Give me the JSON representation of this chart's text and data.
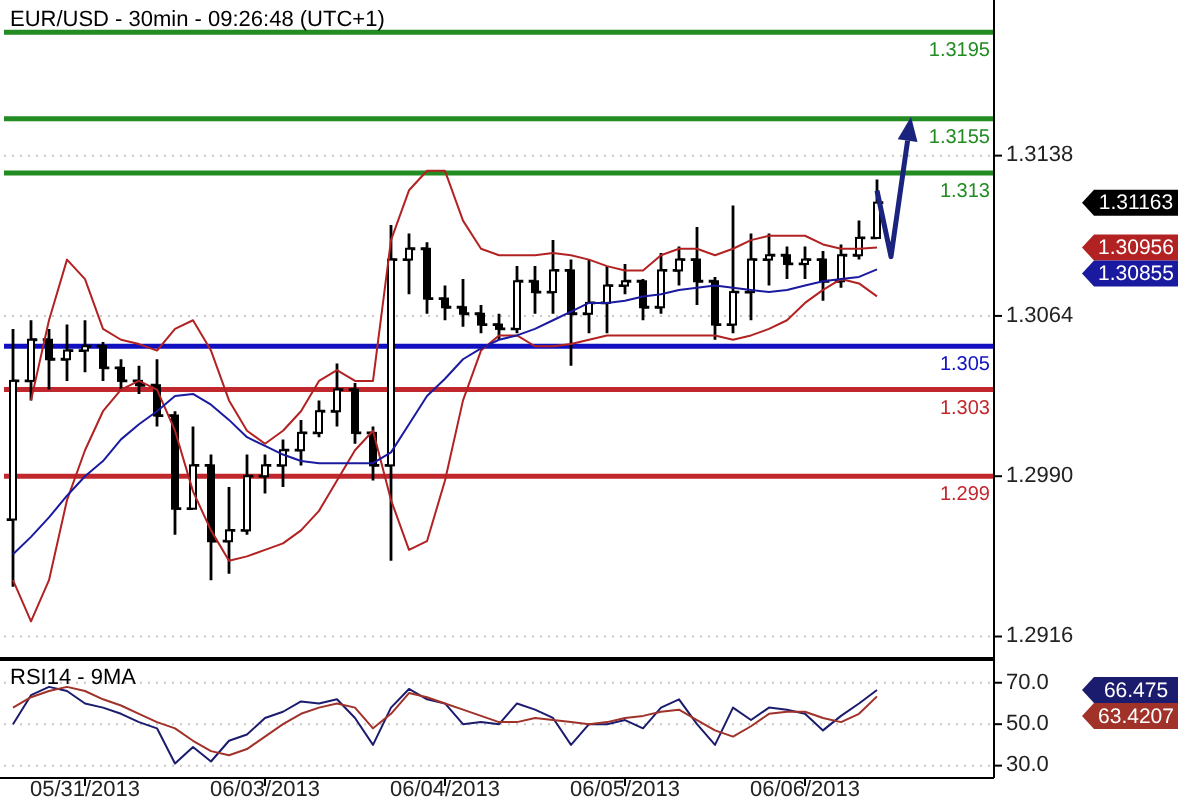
{
  "chart_data": [
    {
      "type": "candlestick",
      "title": "EUR/USD - 30min - 09:26:48 (UTC+1)",
      "color": "#000000",
      "grid": "y",
      "categories": [
        null,
        null,
        null,
        null,
        null,
        null,
        null,
        null,
        null,
        null,
        null,
        null,
        null,
        null,
        null,
        null,
        null,
        null,
        null,
        null,
        null,
        null,
        null,
        null,
        null,
        null,
        null,
        null,
        null,
        null,
        null,
        null,
        null,
        null,
        null,
        null,
        null,
        null,
        null,
        null,
        null,
        null,
        null,
        null,
        null,
        null,
        null,
        null,
        null,
        null,
        null,
        null,
        null,
        null,
        null
      ],
      "ohlc": [
        [
          1.297,
          1.3058,
          1.2939,
          1.3034
        ],
        [
          1.3034,
          1.3062,
          1.3025,
          1.3053
        ],
        [
          1.3053,
          1.3058,
          1.303,
          1.3044
        ],
        [
          1.3044,
          1.306,
          1.3034,
          1.3048
        ],
        [
          1.3048,
          1.3062,
          1.3038,
          1.305
        ],
        [
          1.305,
          1.3052,
          1.3034,
          1.304
        ],
        [
          1.304,
          1.3044,
          1.303,
          1.3034
        ],
        [
          1.3034,
          1.3041,
          1.3028,
          1.3032
        ],
        [
          1.3032,
          1.3044,
          1.3013,
          1.3018
        ],
        [
          1.3018,
          1.302,
          1.2963,
          1.2975
        ],
        [
          1.2975,
          1.3013,
          1.2975,
          1.2995
        ],
        [
          1.2995,
          1.3,
          1.2942,
          1.296
        ],
        [
          1.296,
          1.2985,
          1.2945,
          1.2965
        ],
        [
          1.2965,
          1.3,
          1.2963,
          1.299
        ],
        [
          1.299,
          1.3,
          1.2982,
          1.2995
        ],
        [
          1.2995,
          1.3007,
          1.2985,
          1.3002
        ],
        [
          1.3002,
          1.3016,
          1.2995,
          1.301
        ],
        [
          1.301,
          1.3025,
          1.3008,
          1.302
        ],
        [
          1.302,
          1.3042,
          1.3013,
          1.303
        ],
        [
          1.303,
          1.3033,
          1.3005,
          1.301
        ],
        [
          1.301,
          1.3013,
          1.2988,
          1.2995
        ],
        [
          1.2995,
          1.3106,
          1.2951,
          1.309
        ],
        [
          1.309,
          1.3102,
          1.3074,
          1.3095
        ],
        [
          1.3095,
          1.3098,
          1.3065,
          1.3072
        ],
        [
          1.3072,
          1.3078,
          1.3062,
          1.3068
        ],
        [
          1.3068,
          1.3081,
          1.3059,
          1.3065
        ],
        [
          1.3065,
          1.3069,
          1.3056,
          1.306
        ],
        [
          1.306,
          1.3065,
          1.3053,
          1.3058
        ],
        [
          1.3058,
          1.3087,
          1.3056,
          1.308
        ],
        [
          1.308,
          1.3087,
          1.3065,
          1.3075
        ],
        [
          1.3075,
          1.3099,
          1.3065,
          1.3085
        ],
        [
          1.3085,
          1.309,
          1.3041,
          1.3065
        ],
        [
          1.3065,
          1.309,
          1.3056,
          1.307
        ],
        [
          1.307,
          1.3087,
          1.3056,
          1.3078
        ],
        [
          1.3078,
          1.3088,
          1.3074,
          1.308
        ],
        [
          1.308,
          1.3081,
          1.3062,
          1.3068
        ],
        [
          1.3068,
          1.3093,
          1.3065,
          1.3085
        ],
        [
          1.3085,
          1.3096,
          1.3078,
          1.309
        ],
        [
          1.309,
          1.3105,
          1.3069,
          1.308
        ],
        [
          1.308,
          1.3082,
          1.3053,
          1.306
        ],
        [
          1.306,
          1.3115,
          1.3056,
          1.3075
        ],
        [
          1.3075,
          1.3102,
          1.3062,
          1.309
        ],
        [
          1.309,
          1.3102,
          1.3078,
          1.3092
        ],
        [
          1.3092,
          1.3096,
          1.3081,
          1.3088
        ],
        [
          1.3088,
          1.3096,
          1.3081,
          1.309
        ],
        [
          1.309,
          1.3094,
          1.3071,
          1.308
        ],
        [
          1.308,
          1.3097,
          1.3077,
          1.3092
        ],
        [
          1.3092,
          1.3108,
          1.309,
          1.31
        ],
        [
          1.31,
          1.3127,
          1.31,
          1.31163
        ],
        null,
        null,
        null,
        null,
        null,
        null
      ],
      "annotations": [
        "1.31163",
        "1.30956",
        "1.30855"
      ],
      "series": [
        {
          "type": "line",
          "color": "#b22222",
          "values": [
            null,
            1.3025,
            1.3062,
            1.309,
            1.3081,
            1.3058,
            1.3053,
            1.3051,
            1.3048,
            1.3058,
            1.3062,
            1.3048,
            1.3025,
            1.3011,
            1.3005,
            1.3011,
            1.302,
            1.3034,
            1.3039,
            1.3034,
            1.3034,
            1.3099,
            1.3122,
            1.3131,
            1.3131,
            1.3108,
            1.3095,
            1.3092,
            1.3092,
            1.3092,
            1.3093,
            1.3092,
            1.309,
            1.3087,
            1.3085,
            1.3085,
            1.3092,
            1.3095,
            1.3095,
            1.3092,
            1.3095,
            1.3099,
            1.3101,
            1.3101,
            1.3101,
            1.3097,
            1.3095,
            1.3095,
            1.30956,
            null,
            null,
            null,
            null,
            null,
            null
          ]
        },
        {
          "type": "line",
          "color": "#b22222",
          "values": [
            1.2942,
            1.2923,
            1.2942,
            1.2979,
            1.3002,
            1.302,
            1.303,
            1.3034,
            1.303,
            1.3011,
            1.2983,
            1.2965,
            1.2951,
            1.2953,
            1.2956,
            1.2959,
            1.2965,
            1.2974,
            1.2988,
            1.3002,
            1.3011,
            1.2979,
            1.2956,
            1.296,
            1.2988,
            1.3025,
            1.3048,
            1.3055,
            1.3055,
            1.305,
            1.305,
            1.3051,
            1.3053,
            1.3055,
            1.3055,
            1.3055,
            1.3055,
            1.3055,
            1.3055,
            1.3055,
            1.3053,
            1.3055,
            1.3058,
            1.3062,
            1.307,
            1.3076,
            1.3081,
            1.3079,
            1.3073,
            null,
            null,
            null,
            null,
            null,
            null
          ]
        },
        {
          "type": "line",
          "color": "#1a1aa0",
          "values": [
            1.2954,
            1.2962,
            1.2971,
            1.2981,
            1.299,
            1.2997,
            1.3007,
            1.3014,
            1.302,
            1.3027,
            1.3028,
            1.3023,
            1.3016,
            1.3008,
            1.3004,
            1.3,
            1.2997,
            1.2996,
            1.2996,
            1.2996,
            1.2996,
            1.3001,
            1.3014,
            1.3027,
            1.3035,
            1.3044,
            1.3049,
            1.3053,
            1.3055,
            1.3058,
            1.3062,
            1.3066,
            1.307,
            1.307,
            1.3071,
            1.3073,
            1.3074,
            1.3076,
            1.3077,
            1.3078,
            1.3077,
            1.3076,
            1.3075,
            1.3076,
            1.3078,
            1.308,
            1.3081,
            1.3082,
            1.30855,
            null,
            null,
            null,
            null,
            null,
            null
          ]
        }
      ],
      "ylim": [
        1.2907,
        1.3208
      ],
      "yticks": [
        1.2916,
        {
          "value": 1.299,
          "label": "1.2990"
        },
        1.3064,
        1.3138
      ],
      "ref_lines": [
        {
          "axis": "y",
          "value": 1.3195,
          "label": "1.3195",
          "color": "#228b22"
        },
        {
          "axis": "y",
          "value": 1.3155,
          "label": "1.3155",
          "color": "#228b22"
        },
        {
          "axis": "y",
          "value": 1.313,
          "label": "1.313",
          "color": "#228b22"
        },
        {
          "axis": "y",
          "value": 1.305,
          "label": "1.305",
          "color": "#1010c0"
        },
        {
          "axis": "y",
          "value": 1.303,
          "label": "1.303",
          "color": "#c0282d"
        },
        {
          "axis": "y",
          "value": 1.299,
          "label": "1.299",
          "color": "#c0282d"
        }
      ]
    },
    {
      "type": "line",
      "title": "RSI14 - 9MA",
      "grid": "y",
      "categories": [
        null,
        null,
        null,
        null,
        "05/31/2013",
        null,
        null,
        null,
        null,
        null,
        null,
        null,
        null,
        null,
        "06/03/2013",
        null,
        null,
        null,
        null,
        null,
        null,
        null,
        null,
        null,
        "06/04/2013",
        null,
        null,
        null,
        null,
        null,
        null,
        null,
        null,
        null,
        "06/05/2013",
        null,
        null,
        null,
        null,
        null,
        null,
        null,
        null,
        null,
        "06/06/2013",
        null,
        null,
        null,
        null,
        null,
        null,
        null,
        null,
        null,
        null
      ],
      "series": [
        {
          "color": "#1c1c6e",
          "values": [
            50,
            64,
            68,
            66,
            60,
            58,
            55,
            51,
            48,
            31,
            39,
            32,
            42,
            45,
            53,
            56,
            61,
            60,
            62,
            53,
            40,
            58,
            67,
            62,
            60,
            50,
            51,
            50,
            60,
            57,
            53,
            40,
            50,
            50,
            52,
            48,
            58,
            62,
            50,
            40,
            58,
            52,
            58,
            57,
            55,
            47,
            54,
            60,
            66.475,
            null,
            null,
            null,
            null,
            null,
            null
          ]
        },
        {
          "color": "#a0322a",
          "values": [
            58,
            63,
            66,
            68,
            66,
            62,
            59,
            55,
            51,
            48,
            42,
            37,
            35,
            38,
            44,
            50,
            55,
            58,
            60,
            58,
            48,
            55,
            65,
            63,
            60,
            57,
            54,
            51,
            51,
            53,
            52,
            51,
            50,
            51,
            53,
            54,
            56,
            57,
            52,
            47,
            44,
            49,
            55,
            56,
            56,
            53,
            51,
            55,
            63.4207,
            null,
            null,
            null,
            null,
            null,
            null
          ]
        }
      ],
      "annotations": [
        "66.475",
        "63.4207"
      ],
      "ylim": [
        25,
        80
      ],
      "yticks": [
        {
          "value": 30,
          "label": "30.0"
        },
        {
          "value": 50,
          "label": "50.0"
        },
        {
          "value": 70,
          "label": "70.0"
        }
      ]
    }
  ]
}
